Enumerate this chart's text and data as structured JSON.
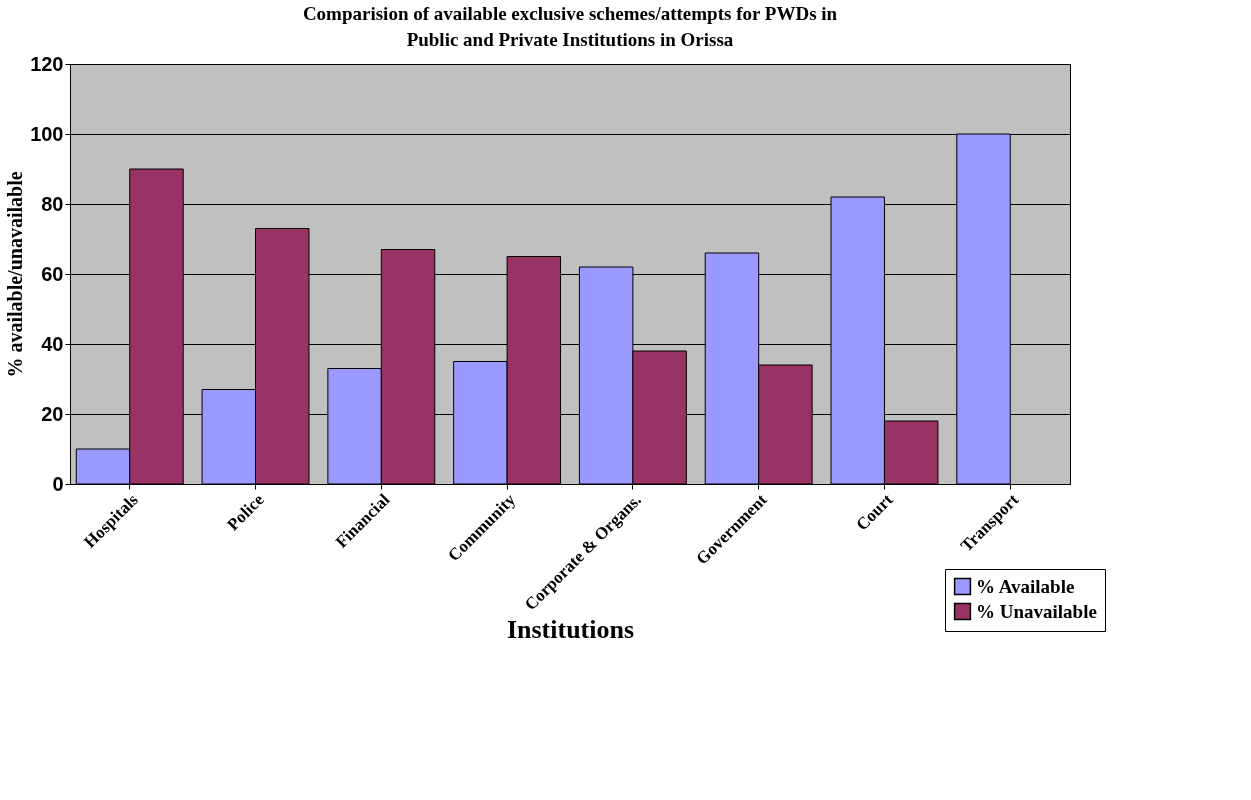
{
  "chart_data": {
    "type": "bar",
    "title": "Comparision of available exclusive schemes/attempts for PWDs in Public and Private Institutions in Orissa",
    "xlabel": "Institutions",
    "ylabel": "% available/unavailable",
    "categories": [
      "Hospitals",
      "Police",
      "Financial",
      "Community",
      "Corporate & Organs.",
      "Government",
      "Court",
      "Transport"
    ],
    "series": [
      {
        "name": "% Available",
        "color": "#9999ff",
        "values": [
          10,
          27,
          33,
          35,
          62,
          66,
          82,
          100
        ]
      },
      {
        "name": "% Unavailable",
        "color": "#993366",
        "values": [
          90,
          73,
          67,
          65,
          38,
          34,
          18,
          null
        ]
      }
    ],
    "ylim": [
      0,
      120
    ],
    "yticks": [
      0,
      20,
      40,
      60,
      80,
      100,
      120
    ],
    "grid": "y",
    "legend": "bottom right"
  }
}
